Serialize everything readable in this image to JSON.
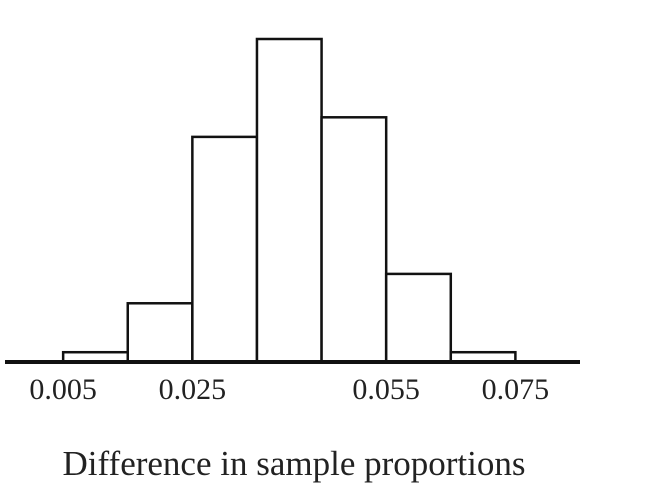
{
  "chart_data": {
    "type": "histogram",
    "x_label": "Difference in sample proportions",
    "bins": [
      0.005,
      0.015,
      0.025,
      0.035,
      0.045,
      0.055,
      0.065,
      0.075
    ],
    "values": [
      1,
      6,
      23,
      33,
      25,
      9,
      1
    ],
    "xlim": [
      -0.004,
      0.085
    ],
    "xticks": [
      0.005,
      0.025,
      0.055,
      0.075
    ],
    "ylim": [
      0,
      33
    ],
    "color": "#ffffff",
    "edgecolor": "#111111"
  }
}
